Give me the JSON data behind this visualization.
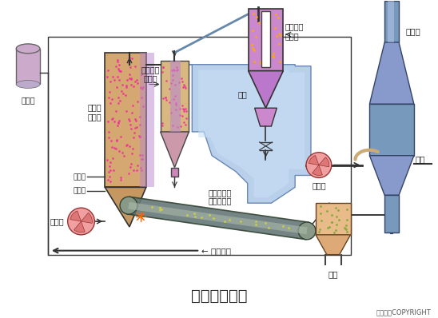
{
  "title": "流化床焚烧炉",
  "copyright": "东方仿真COPYRIGHT",
  "bg_color": "#ffffff",
  "labels": {
    "heavy_oil": "重油池",
    "blower": "鼓风机",
    "start": "启动用",
    "assist": "助燃用",
    "furnace": "流化床\n焚烧炉",
    "separator1": "一次旋流\n分离器",
    "separator2": "二次旋流\n分离器",
    "mud_cake": "泥饼",
    "dryer": "快速干燥器",
    "conveyor": "带式输送机",
    "dry_mud": "干燥泥饼",
    "fan": "抽风机",
    "dust": "除尘器",
    "water": "进水",
    "ash": "灰斗"
  }
}
